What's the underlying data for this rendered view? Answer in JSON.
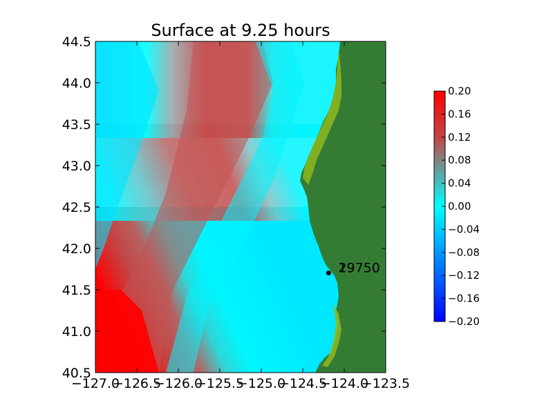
{
  "chart_data": {
    "type": "heatmap",
    "title": "Surface at 9.25 hours",
    "xlabel": "",
    "ylabel": "",
    "xlim": [
      -127.0,
      -123.5
    ],
    "ylim": [
      40.5,
      44.5
    ],
    "x_ticks": [
      "−127.0",
      "−126.5",
      "−126.0",
      "−125.5",
      "−125.0",
      "−124.5",
      "−124.0",
      "−123.5"
    ],
    "x_tick_values": [
      -127.0,
      -126.5,
      -126.0,
      -125.5,
      -125.0,
      -124.5,
      -124.0,
      -123.5
    ],
    "y_ticks": [
      "40.5",
      "41.0",
      "41.5",
      "42.0",
      "42.5",
      "43.0",
      "43.5",
      "44.0",
      "44.5"
    ],
    "y_tick_values": [
      40.5,
      41.0,
      41.5,
      42.0,
      42.5,
      43.0,
      43.5,
      44.0,
      44.5
    ],
    "colorbar": {
      "min": -0.2,
      "max": 0.2,
      "ticks": [
        "−0.20",
        "−0.16",
        "−0.12",
        "−0.08",
        "−0.04",
        "0.00",
        "0.04",
        "0.08",
        "0.12",
        "0.16",
        "0.20"
      ],
      "tick_values": [
        -0.2,
        -0.16,
        -0.12,
        -0.08,
        -0.04,
        0.0,
        0.04,
        0.08,
        0.12,
        0.16,
        0.2
      ],
      "colors": [
        "#0000ff",
        "#00ffff",
        "#c44444",
        "#ff0000"
      ]
    },
    "land_color": "#347c34",
    "gauges": [
      {
        "label": "2",
        "lon": -124.18,
        "lat": 41.745
      },
      {
        "label": "19750",
        "lon": -124.18,
        "lat": 41.745
      }
    ],
    "grid": false
  }
}
